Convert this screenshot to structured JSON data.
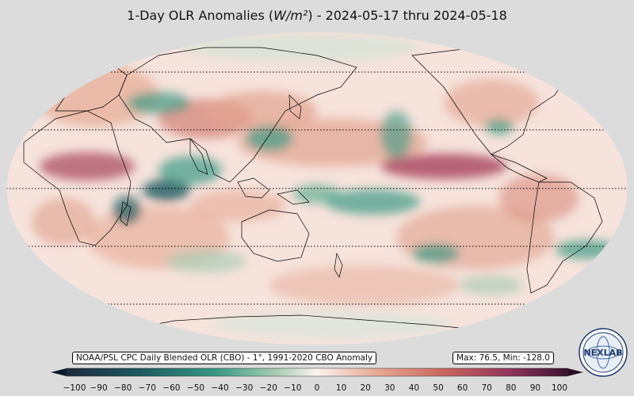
{
  "title": {
    "prefix": "1-Day OLR Anomalies (",
    "unit": "W/m²",
    "suffix": ") - 2024-05-17 thru 2024-05-18"
  },
  "source_label": "NOAA/PSL CPC Daily Blended OLR (CBO) - 1°, 1991-2020 CBO Anomaly",
  "stats_label": "Max: 76.5,  Min: -128.0",
  "logo": {
    "text": "NEXLAB",
    "name": "nexlab-logo"
  },
  "colorbar": {
    "min": -100,
    "max": 100,
    "ticks": [
      "−100",
      "−90",
      "−80",
      "−70",
      "−60",
      "−50",
      "−40",
      "−30",
      "−20",
      "−10",
      "0",
      "10",
      "20",
      "30",
      "40",
      "50",
      "60",
      "70",
      "80",
      "90",
      "100"
    ],
    "negative_color": "#0f7a6a",
    "neutral_color": "#fbf3f0",
    "positive_color": "#8c2a5a"
  },
  "map": {
    "projection": "robinson",
    "land_outline_color": "#000000",
    "latitude_gridlines": "dotted"
  }
}
